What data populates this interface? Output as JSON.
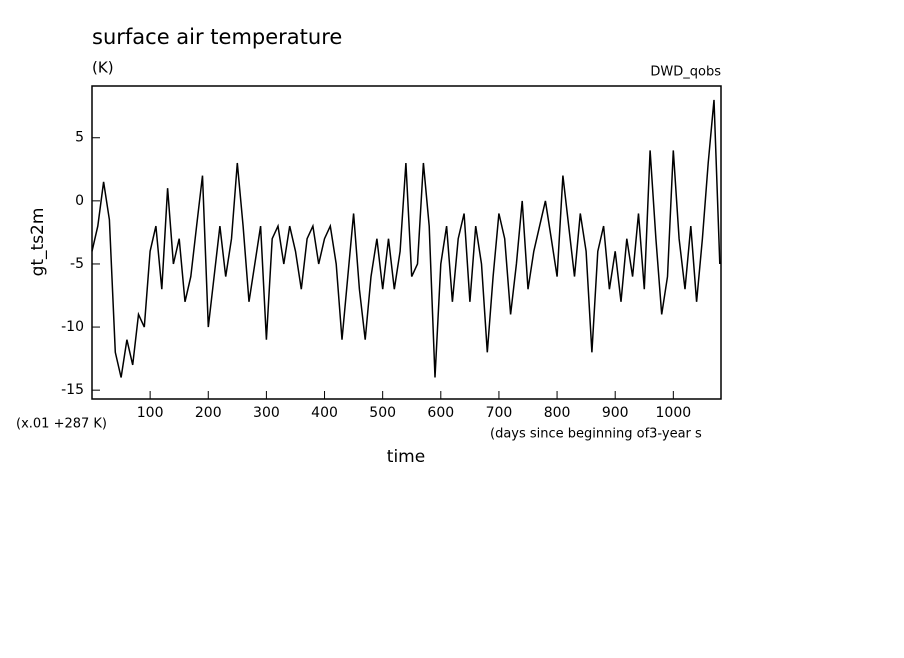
{
  "chart_data": {
    "type": "line",
    "title": "surface air temperature",
    "subtitle": "(K)",
    "source": "DWD_qobs",
    "y_label": "gt_ts2m",
    "y_unit_note": "(x.01 +287 K)",
    "x_unit_note": "(days since beginning of3-year s",
    "x_label": "time",
    "xlim": [
      0,
      1082
    ],
    "ylim": [
      -15.7,
      9.1
    ],
    "xticks": [
      100,
      200,
      300,
      400,
      500,
      600,
      700,
      800,
      900,
      1000
    ],
    "yticks": [
      -15,
      -10,
      -5,
      0,
      5
    ],
    "series": [
      {
        "color": "#000000",
        "x": [
          0,
          10,
          20,
          30,
          40,
          50,
          60,
          70,
          80,
          90,
          100,
          110,
          120,
          130,
          140,
          150,
          160,
          170,
          180,
          190,
          200,
          210,
          220,
          230,
          240,
          250,
          260,
          270,
          280,
          290,
          300,
          310,
          320,
          330,
          340,
          350,
          360,
          370,
          380,
          390,
          400,
          410,
          420,
          430,
          440,
          450,
          460,
          470,
          480,
          490,
          500,
          510,
          520,
          530,
          540,
          550,
          560,
          570,
          580,
          590,
          600,
          610,
          620,
          630,
          640,
          650,
          660,
          670,
          680,
          690,
          700,
          710,
          720,
          730,
          740,
          750,
          760,
          770,
          780,
          790,
          800,
          810,
          820,
          830,
          840,
          850,
          860,
          870,
          880,
          890,
          900,
          910,
          920,
          930,
          940,
          950,
          960,
          970,
          980,
          990,
          1000,
          1010,
          1020,
          1030,
          1040,
          1050,
          1060,
          1070,
          1080
        ],
        "values": [
          -4,
          -2,
          1.5,
          -1.5,
          -12,
          -14,
          -11,
          -13,
          -9,
          -10,
          -4,
          -2,
          -7,
          1,
          -5,
          -3,
          -8,
          -6,
          -2,
          2,
          -10,
          -6,
          -2,
          -6,
          -3,
          3,
          -2,
          -8,
          -5,
          -2,
          -11,
          -3,
          -2,
          -5,
          -2,
          -4,
          -7,
          -3,
          -2,
          -5,
          -3,
          -2,
          -5,
          -11,
          -6,
          -1,
          -7,
          -11,
          -6,
          -3,
          -7,
          -3,
          -7,
          -4,
          3,
          -6,
          -5,
          3,
          -2,
          -14,
          -5,
          -2,
          -8,
          -3,
          -1,
          -8,
          -2,
          -5,
          -12,
          -6,
          -1,
          -3,
          -9,
          -5,
          0,
          -7,
          -4,
          -2,
          0,
          -3,
          -6,
          2,
          -2,
          -6,
          -1,
          -4,
          -12,
          -4,
          -2,
          -7,
          -4,
          -8,
          -3,
          -6,
          -1,
          -7,
          4,
          -3,
          -9,
          -6,
          4,
          -3,
          -7,
          -2,
          -8,
          -3,
          3,
          8,
          -5
        ]
      }
    ]
  }
}
